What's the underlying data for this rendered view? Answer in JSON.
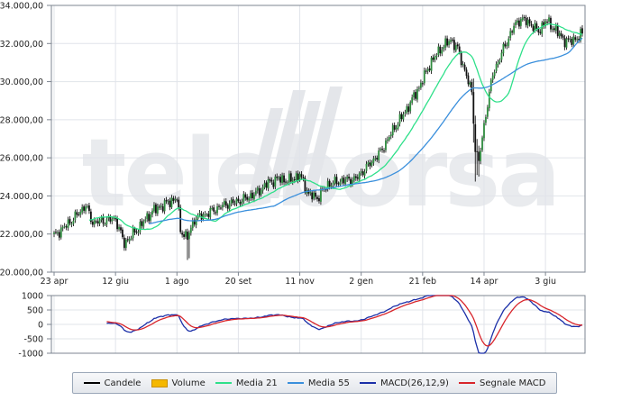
{
  "watermark": "teleborsa",
  "chart_data": [
    {
      "type": "candlestick",
      "ylim": [
        20000,
        34000
      ],
      "y_ticks": [
        {
          "value": 20000,
          "label": "20.000,00"
        },
        {
          "value": 22000,
          "label": "22.000,00"
        },
        {
          "value": 24000,
          "label": "24.000,00"
        },
        {
          "value": 26000,
          "label": "26.000,00"
        },
        {
          "value": 28000,
          "label": "28.000,00"
        },
        {
          "value": 30000,
          "label": "30.000,00"
        },
        {
          "value": 32000,
          "label": "32.000,00"
        },
        {
          "value": 34000,
          "label": "34.000,00"
        }
      ],
      "x_ticks": [
        {
          "index": 0,
          "label": "23 apr"
        },
        {
          "index": 35,
          "label": "12 giu"
        },
        {
          "index": 70,
          "label": "1 ago"
        },
        {
          "index": 105,
          "label": "20 set"
        },
        {
          "index": 140,
          "label": "11 nov"
        },
        {
          "index": 175,
          "label": "2 gen"
        },
        {
          "index": 210,
          "label": "21 feb"
        },
        {
          "index": 245,
          "label": "14 apr"
        },
        {
          "index": 280,
          "label": "3 giu"
        }
      ],
      "n_sessions": 302,
      "close_path": [
        [
          0,
          21900
        ],
        [
          10,
          22700
        ],
        [
          18,
          23500
        ],
        [
          22,
          22600
        ],
        [
          35,
          22800
        ],
        [
          40,
          21500
        ],
        [
          48,
          22300
        ],
        [
          56,
          23200
        ],
        [
          64,
          23600
        ],
        [
          70,
          23900
        ],
        [
          72,
          22200
        ],
        [
          76,
          21800
        ],
        [
          80,
          22800
        ],
        [
          88,
          23100
        ],
        [
          96,
          23500
        ],
        [
          104,
          23700
        ],
        [
          110,
          23900
        ],
        [
          116,
          24200
        ],
        [
          122,
          24700
        ],
        [
          128,
          24900
        ],
        [
          134,
          24800
        ],
        [
          140,
          25100
        ],
        [
          145,
          24100
        ],
        [
          150,
          23900
        ],
        [
          156,
          24600
        ],
        [
          164,
          24800
        ],
        [
          172,
          24900
        ],
        [
          178,
          25500
        ],
        [
          186,
          26300
        ],
        [
          194,
          27600
        ],
        [
          200,
          28400
        ],
        [
          208,
          29700
        ],
        [
          214,
          30900
        ],
        [
          220,
          31700
        ],
        [
          226,
          32200
        ],
        [
          230,
          31700
        ],
        [
          234,
          30600
        ],
        [
          238,
          29400
        ],
        [
          240,
          26500
        ],
        [
          242,
          25800
        ],
        [
          246,
          28300
        ],
        [
          250,
          30400
        ],
        [
          256,
          31700
        ],
        [
          262,
          32900
        ],
        [
          266,
          33300
        ],
        [
          272,
          33000
        ],
        [
          276,
          32600
        ],
        [
          280,
          33200
        ],
        [
          286,
          32700
        ],
        [
          290,
          32200
        ],
        [
          294,
          32100
        ],
        [
          298,
          32300
        ],
        [
          301,
          32500
        ]
      ],
      "series": [
        {
          "name": "Candele",
          "color": "#000000"
        },
        {
          "name": "Volume",
          "color": "#f5b800"
        },
        {
          "name": "Media 21",
          "color": "#2fe08a",
          "period": 21
        },
        {
          "name": "Media 55",
          "color": "#3a8fdc",
          "period": 55
        }
      ]
    },
    {
      "type": "line",
      "ylim": [
        -1000,
        1000
      ],
      "y_ticks": [
        {
          "value": 1000,
          "label": "1000"
        },
        {
          "value": 500,
          "label": "500"
        },
        {
          "value": 0,
          "label": "0"
        },
        {
          "value": -500,
          "label": "-500"
        },
        {
          "value": -1000,
          "label": "-1000"
        }
      ],
      "series": [
        {
          "name": "MACD(26,12,9)",
          "color": "#1b2fa8",
          "fast": 12,
          "slow": 26
        },
        {
          "name": "Segnale MACD",
          "color": "#d8252b",
          "signal": 9
        }
      ]
    }
  ]
}
